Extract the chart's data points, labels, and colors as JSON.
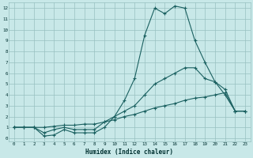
{
  "title": "",
  "xlabel": "Humidex (Indice chaleur)",
  "bg_color": "#c8e8e8",
  "grid_color": "#98c0c0",
  "line_color": "#1a6060",
  "xlim": [
    -0.5,
    23.5
  ],
  "ylim": [
    -0.3,
    12.5
  ],
  "xticks": [
    0,
    1,
    2,
    3,
    4,
    5,
    6,
    7,
    8,
    9,
    10,
    11,
    12,
    13,
    14,
    15,
    16,
    17,
    18,
    19,
    20,
    21,
    22,
    23
  ],
  "yticks": [
    0,
    1,
    2,
    3,
    4,
    5,
    6,
    7,
    8,
    9,
    10,
    11,
    12
  ],
  "line1_x": [
    0,
    1,
    2,
    3,
    4,
    5,
    6,
    7,
    8,
    9,
    10,
    11,
    12,
    13,
    14,
    15,
    16,
    17,
    18,
    19,
    20,
    21,
    22,
    23
  ],
  "line1_y": [
    1,
    1,
    1,
    0.2,
    0.3,
    0.8,
    0.5,
    0.5,
    0.5,
    1.0,
    2.0,
    3.5,
    5.5,
    9.5,
    12.0,
    11.5,
    12.2,
    12.0,
    9.0,
    7.0,
    5.2,
    4.0,
    2.5,
    2.5
  ],
  "line2_x": [
    0,
    1,
    2,
    3,
    4,
    5,
    6,
    7,
    8,
    9,
    10,
    11,
    12,
    13,
    14,
    15,
    16,
    17,
    18,
    19,
    20,
    21,
    22,
    23
  ],
  "line2_y": [
    1,
    1,
    1,
    0.5,
    0.8,
    1.0,
    0.8,
    0.8,
    0.8,
    1.5,
    2.0,
    2.5,
    3.0,
    4.0,
    5.0,
    5.5,
    6.0,
    6.5,
    6.5,
    5.5,
    5.2,
    4.5,
    2.5,
    2.5
  ],
  "line3_x": [
    0,
    1,
    2,
    3,
    4,
    5,
    6,
    7,
    8,
    9,
    10,
    11,
    12,
    13,
    14,
    15,
    16,
    17,
    18,
    19,
    20,
    21,
    22,
    23
  ],
  "line3_y": [
    1,
    1,
    1,
    1.0,
    1.1,
    1.2,
    1.2,
    1.3,
    1.3,
    1.5,
    1.7,
    2.0,
    2.2,
    2.5,
    2.8,
    3.0,
    3.2,
    3.5,
    3.7,
    3.8,
    4.0,
    4.2,
    2.5,
    2.5
  ]
}
